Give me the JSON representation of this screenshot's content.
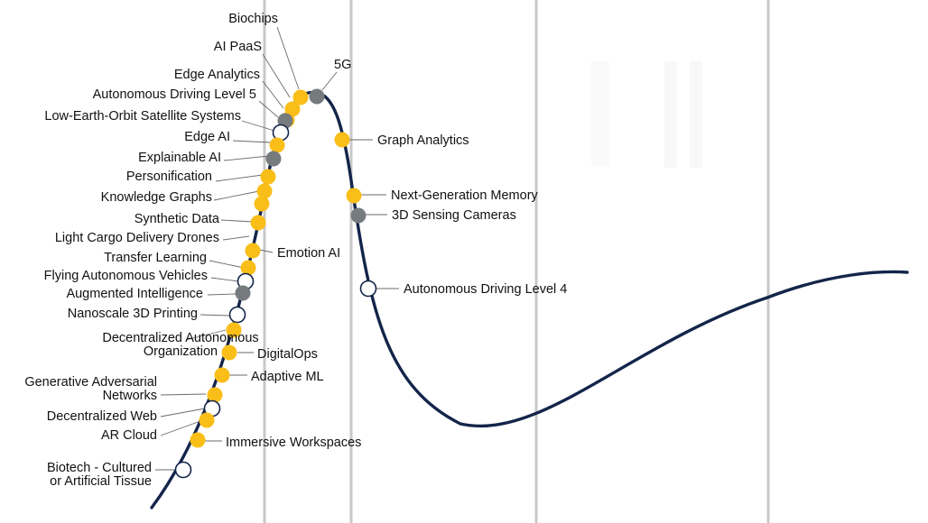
{
  "colors": {
    "curve": "#14254a",
    "yellow": "#f9be18",
    "gray": "#767b7e",
    "white": "#ffffff",
    "divider": "#c8c8c8",
    "leader": "#6a6a6a"
  },
  "technologies": [
    {
      "label": "Biochips",
      "marker": "yellow"
    },
    {
      "label": "AI PaaS",
      "marker": "yellow"
    },
    {
      "label": "5G",
      "marker": "gray"
    },
    {
      "label": "Edge Analytics",
      "marker": "yellow"
    },
    {
      "label": "Autonomous Driving Level 5",
      "marker": "gray"
    },
    {
      "label": "Low-Earth-Orbit Satellite Systems",
      "marker": "white"
    },
    {
      "label": "Edge AI",
      "marker": "yellow"
    },
    {
      "label": "Explainable AI",
      "marker": "gray"
    },
    {
      "label": "Personification",
      "marker": "yellow"
    },
    {
      "label": "Knowledge Graphs",
      "marker": "yellow"
    },
    {
      "label": "Synthetic Data",
      "marker": "yellow"
    },
    {
      "label": "Light Cargo Delivery Drones",
      "marker": "yellow"
    },
    {
      "label": "Emotion AI",
      "marker": "yellow"
    },
    {
      "label": "Transfer Learning",
      "marker": "yellow"
    },
    {
      "label": "Flying Autonomous Vehicles",
      "marker": "white"
    },
    {
      "label": "Augmented Intelligence",
      "marker": "gray"
    },
    {
      "label": "Nanoscale 3D Printing",
      "marker": "white"
    },
    {
      "label": "Decentralized Autonomous Organization",
      "marker": "yellow"
    },
    {
      "label": "DigitalOps",
      "marker": "yellow"
    },
    {
      "label": "Adaptive ML",
      "marker": "yellow"
    },
    {
      "label": "Generative Adversarial Networks",
      "marker": "yellow"
    },
    {
      "label": "Decentralized Web",
      "marker": "white"
    },
    {
      "label": "AR Cloud",
      "marker": "yellow"
    },
    {
      "label": "Immersive Workspaces",
      "marker": "yellow"
    },
    {
      "label": "Biotech - Cultured or Artificial Tissue",
      "marker": "white"
    },
    {
      "label": "Graph Analytics",
      "marker": "yellow"
    },
    {
      "label": "Next-Generation Memory",
      "marker": "yellow"
    },
    {
      "label": "3D Sensing Cameras",
      "marker": "gray"
    },
    {
      "label": "Autonomous Driving Level 4",
      "marker": "white"
    }
  ]
}
